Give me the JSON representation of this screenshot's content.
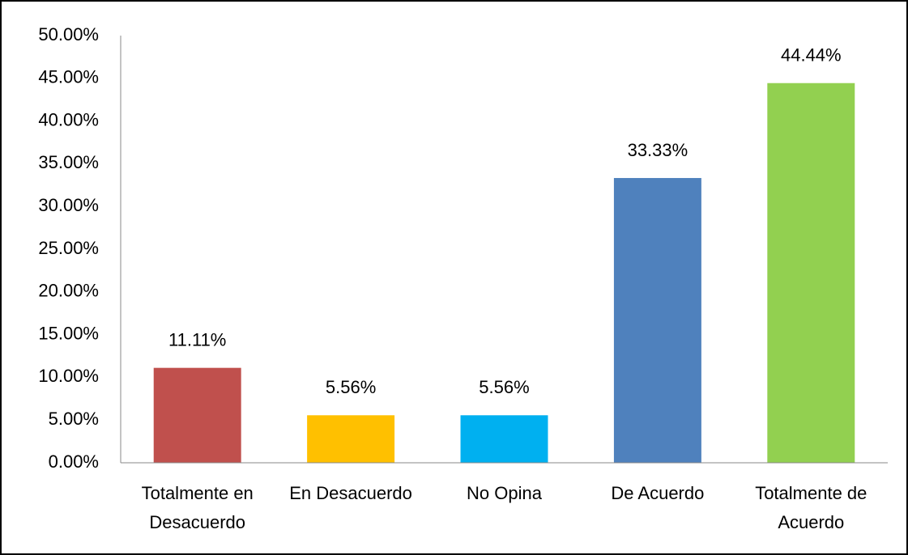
{
  "chart_data": {
    "type": "bar",
    "categories": [
      "Totalmente en Desacuerdo",
      "En Desacuerdo",
      "No Opina",
      "De Acuerdo",
      "Totalmente de Acuerdo"
    ],
    "values": [
      11.11,
      5.56,
      5.56,
      33.33,
      44.44
    ],
    "value_labels": [
      "11.11%",
      "5.56%",
      "5.56%",
      "33.33%",
      "44.44%"
    ],
    "colors": [
      "#c0504d",
      "#ffc000",
      "#00b0f0",
      "#4f81bd",
      "#92d050"
    ],
    "ylim": [
      0,
      50
    ],
    "yticks": [
      {
        "value": 0,
        "label": "0.00%"
      },
      {
        "value": 5,
        "label": "5.00%"
      },
      {
        "value": 10,
        "label": "10.00%"
      },
      {
        "value": 15,
        "label": "15.00%"
      },
      {
        "value": 20,
        "label": "20.00%"
      },
      {
        "value": 25,
        "label": "25.00%"
      },
      {
        "value": 30,
        "label": "30.00%"
      },
      {
        "value": 35,
        "label": "35.00%"
      },
      {
        "value": 40,
        "label": "40.00%"
      },
      {
        "value": 45,
        "label": "45.00%"
      },
      {
        "value": 50,
        "label": "50.00%"
      }
    ],
    "grid": false
  }
}
